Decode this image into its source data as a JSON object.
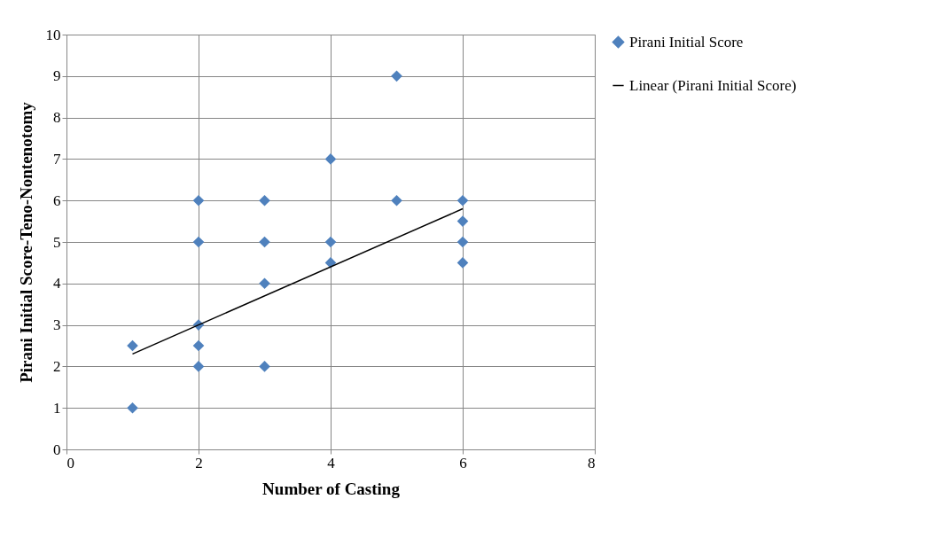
{
  "chart_data": {
    "type": "scatter",
    "xlabel": "Number of Casting",
    "ylabel": "Pirani Initial Score-Teno-Nontenotomy",
    "xlim": [
      0,
      8
    ],
    "xticks": [
      0,
      2,
      4,
      6,
      8
    ],
    "ylim": [
      0,
      10
    ],
    "yticks": [
      0,
      1,
      2,
      3,
      4,
      5,
      6,
      7,
      8,
      9,
      10
    ],
    "grid": true,
    "legend": "right",
    "series": [
      {
        "name": "Pirani Initial Score",
        "color": "#4f81bd",
        "marker": "diamond",
        "x": [
          1,
          1,
          2,
          2,
          2,
          2,
          2,
          3,
          3,
          3,
          3,
          4,
          4,
          4,
          5,
          5,
          6,
          6,
          6,
          6
        ],
        "values": [
          2.5,
          1,
          6,
          5,
          3,
          2.5,
          2,
          6,
          5,
          4,
          2,
          7,
          5,
          4.5,
          9,
          6,
          6,
          5.5,
          5,
          4.5
        ]
      },
      {
        "name": "Linear (Pirani Initial Score)",
        "type": "line",
        "color": "#000000",
        "marker": "none",
        "x": [
          1,
          6
        ],
        "values": [
          2.3,
          5.8
        ]
      }
    ]
  }
}
